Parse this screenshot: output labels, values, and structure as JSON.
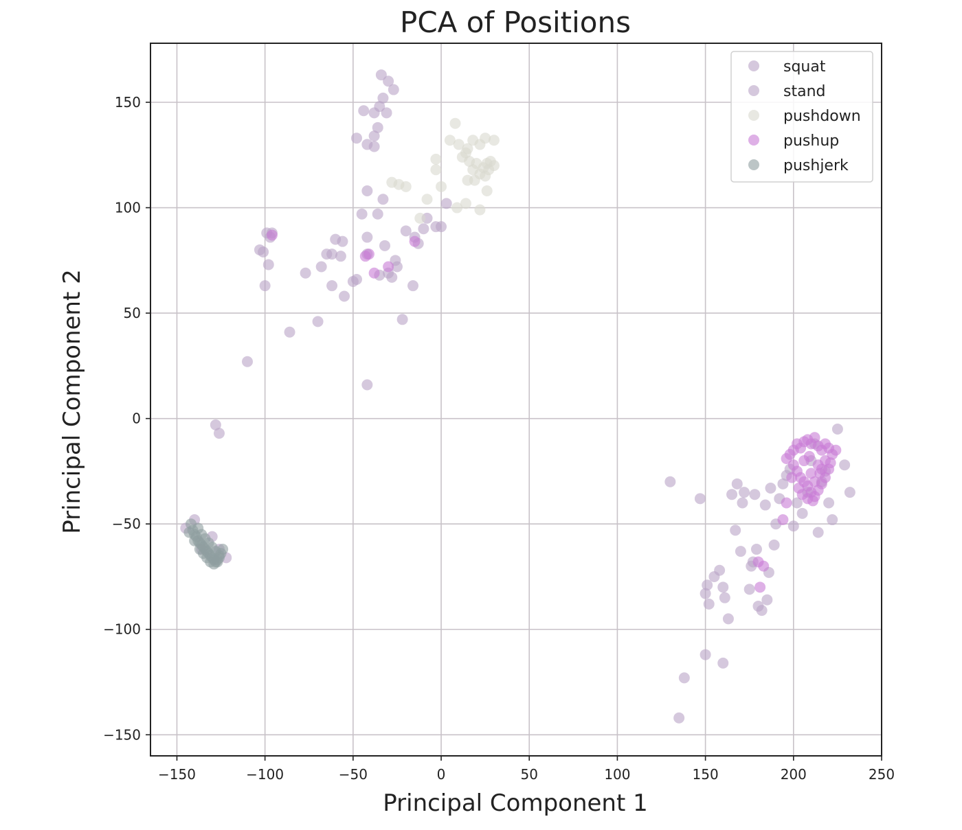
{
  "chart_data": {
    "type": "scatter",
    "title": "PCA of Positions",
    "xlabel": "Principal Component 1",
    "ylabel": "Principal Component 2",
    "xlim": [
      -165,
      250
    ],
    "ylim": [
      -160,
      178
    ],
    "xticks": [
      -150,
      -100,
      -50,
      0,
      50,
      100,
      150,
      200,
      250
    ],
    "yticks": [
      -150,
      -100,
      -50,
      0,
      50,
      100,
      150
    ],
    "xtick_labels": [
      "−150",
      "−100",
      "−50",
      "0",
      "50",
      "100",
      "150",
      "200",
      "250"
    ],
    "ytick_labels": [
      "−150",
      "−100",
      "−50",
      "0",
      "50",
      "100",
      "150"
    ],
    "grid": true,
    "legend_position": "top-right",
    "series": [
      {
        "name": "squat",
        "color": "#b9a3c7",
        "points": [
          [
            -140,
            -48
          ],
          [
            -145,
            -52
          ],
          [
            -130,
            -56
          ],
          [
            -126,
            -62
          ],
          [
            -122,
            -66
          ],
          [
            -136,
            -62
          ],
          [
            -128,
            -3
          ],
          [
            -126,
            -7
          ],
          [
            130,
            -30
          ],
          [
            147,
            -38
          ],
          [
            150,
            -83
          ],
          [
            151,
            -79
          ],
          [
            152,
            -88
          ],
          [
            155,
            -75
          ],
          [
            158,
            -72
          ],
          [
            160,
            -80
          ],
          [
            161,
            -85
          ],
          [
            163,
            -95
          ],
          [
            165,
            -36
          ],
          [
            167,
            -53
          ],
          [
            168,
            -31
          ],
          [
            170,
            -63
          ],
          [
            171,
            -40
          ],
          [
            172,
            -35
          ],
          [
            175,
            -81
          ],
          [
            176,
            -70
          ],
          [
            177,
            -68
          ],
          [
            178,
            -36
          ],
          [
            179,
            -62
          ],
          [
            180,
            -89
          ],
          [
            182,
            -91
          ],
          [
            184,
            -41
          ],
          [
            185,
            -86
          ],
          [
            186,
            -73
          ],
          [
            187,
            -33
          ],
          [
            189,
            -60
          ],
          [
            190,
            -50
          ],
          [
            192,
            -38
          ],
          [
            194,
            -31
          ],
          [
            196,
            -27
          ],
          [
            198,
            -24
          ],
          [
            200,
            -51
          ],
          [
            202,
            -40
          ],
          [
            205,
            -45
          ],
          [
            208,
            -35
          ],
          [
            210,
            -20
          ],
          [
            212,
            -12
          ],
          [
            214,
            -54
          ],
          [
            216,
            -30
          ],
          [
            218,
            -25
          ],
          [
            220,
            -40
          ],
          [
            222,
            -48
          ],
          [
            225,
            -5
          ],
          [
            229,
            -22
          ],
          [
            232,
            -35
          ],
          [
            150,
            -112
          ],
          [
            160,
            -116
          ],
          [
            138,
            -123
          ],
          [
            135,
            -142
          ]
        ]
      },
      {
        "name": "stand",
        "color": "#b9a3c7",
        "points": [
          [
            -34,
            163
          ],
          [
            -30,
            160
          ],
          [
            -27,
            156
          ],
          [
            -33,
            152
          ],
          [
            -35,
            148
          ],
          [
            -31,
            145
          ],
          [
            -38,
            145
          ],
          [
            -44,
            146
          ],
          [
            -36,
            138
          ],
          [
            -38,
            134
          ],
          [
            -38,
            129
          ],
          [
            -48,
            133
          ],
          [
            -42,
            130
          ],
          [
            -42,
            108
          ],
          [
            -33,
            104
          ],
          [
            -45,
            97
          ],
          [
            -36,
            97
          ],
          [
            -60,
            85
          ],
          [
            -56,
            84
          ],
          [
            -42,
            86
          ],
          [
            -32,
            82
          ],
          [
            -62,
            78
          ],
          [
            -57,
            77
          ],
          [
            -65,
            78
          ],
          [
            -42,
            78
          ],
          [
            -26,
            75
          ],
          [
            -25,
            72
          ],
          [
            -30,
            69
          ],
          [
            -35,
            68
          ],
          [
            -28,
            67
          ],
          [
            -48,
            66
          ],
          [
            -50,
            65
          ],
          [
            -62,
            63
          ],
          [
            -55,
            58
          ],
          [
            -16,
            63
          ],
          [
            -68,
            72
          ],
          [
            -77,
            69
          ],
          [
            -22,
            47
          ],
          [
            -70,
            46
          ],
          [
            -86,
            41
          ],
          [
            -110,
            27
          ],
          [
            -42,
            16
          ],
          [
            -20,
            89
          ],
          [
            -15,
            86
          ],
          [
            -13,
            83
          ],
          [
            -10,
            90
          ],
          [
            -8,
            95
          ],
          [
            -3,
            91
          ],
          [
            0,
            91
          ],
          [
            3,
            102
          ],
          [
            -99,
            88
          ],
          [
            -97,
            86
          ],
          [
            -96,
            88
          ],
          [
            -98,
            73
          ],
          [
            -101,
            79
          ],
          [
            -103,
            80
          ],
          [
            -100,
            63
          ]
        ]
      },
      {
        "name": "pushdown",
        "color": "#d9d9cf",
        "points": [
          [
            8,
            140
          ],
          [
            5,
            132
          ],
          [
            10,
            130
          ],
          [
            15,
            128
          ],
          [
            18,
            132
          ],
          [
            22,
            130
          ],
          [
            25,
            133
          ],
          [
            30,
            132
          ],
          [
            12,
            124
          ],
          [
            14,
            126
          ],
          [
            16,
            122
          ],
          [
            18,
            118
          ],
          [
            20,
            121
          ],
          [
            22,
            116
          ],
          [
            24,
            119
          ],
          [
            26,
            121
          ],
          [
            28,
            122
          ],
          [
            30,
            120
          ],
          [
            15,
            113
          ],
          [
            19,
            113
          ],
          [
            27,
            118
          ],
          [
            25,
            115
          ],
          [
            26,
            108
          ],
          [
            14,
            102
          ],
          [
            9,
            100
          ],
          [
            0,
            110
          ],
          [
            -3,
            123
          ],
          [
            -3,
            118
          ],
          [
            -8,
            104
          ],
          [
            -12,
            95
          ],
          [
            22,
            99
          ],
          [
            -24,
            111
          ],
          [
            -20,
            110
          ],
          [
            -28,
            112
          ]
        ]
      },
      {
        "name": "pushup",
        "color": "#c87bd6",
        "points": [
          [
            198,
            -17
          ],
          [
            200,
            -15
          ],
          [
            202,
            -12
          ],
          [
            204,
            -14
          ],
          [
            206,
            -11
          ],
          [
            208,
            -10
          ],
          [
            210,
            -12
          ],
          [
            212,
            -9
          ],
          [
            214,
            -13
          ],
          [
            216,
            -15
          ],
          [
            218,
            -12
          ],
          [
            220,
            -14
          ],
          [
            222,
            -17
          ],
          [
            224,
            -15
          ],
          [
            200,
            -22
          ],
          [
            202,
            -25
          ],
          [
            204,
            -28
          ],
          [
            206,
            -30
          ],
          [
            208,
            -32
          ],
          [
            210,
            -35
          ],
          [
            212,
            -37
          ],
          [
            214,
            -34
          ],
          [
            216,
            -31
          ],
          [
            218,
            -28
          ],
          [
            206,
            -20
          ],
          [
            210,
            -26
          ],
          [
            214,
            -22
          ],
          [
            218,
            -20
          ],
          [
            220,
            -24
          ],
          [
            203,
            -33
          ],
          [
            208,
            -38
          ],
          [
            212,
            -30
          ],
          [
            215,
            -26
          ],
          [
            196,
            -19
          ],
          [
            199,
            -28
          ],
          [
            205,
            -36
          ],
          [
            211,
            -39
          ],
          [
            216,
            -24
          ],
          [
            221,
            -21
          ],
          [
            209,
            -18
          ],
          [
            180,
            -68
          ],
          [
            183,
            -70
          ],
          [
            181,
            -80
          ],
          [
            194,
            -48
          ],
          [
            196,
            -40
          ],
          [
            -41,
            78
          ],
          [
            -43,
            77
          ],
          [
            -15,
            84
          ],
          [
            -30,
            72
          ],
          [
            -38,
            69
          ],
          [
            -96,
            87
          ]
        ]
      },
      {
        "name": "pushjerk",
        "color": "#909fa0",
        "points": [
          [
            -142,
            -50
          ],
          [
            -141,
            -53
          ],
          [
            -140,
            -55
          ],
          [
            -139,
            -56
          ],
          [
            -138,
            -58
          ],
          [
            -137,
            -59
          ],
          [
            -136,
            -60
          ],
          [
            -135,
            -61
          ],
          [
            -134,
            -62
          ],
          [
            -133,
            -63
          ],
          [
            -132,
            -64
          ],
          [
            -131,
            -65
          ],
          [
            -130,
            -66
          ],
          [
            -129,
            -67
          ],
          [
            -128,
            -68
          ],
          [
            -127,
            -67
          ],
          [
            -126,
            -66
          ],
          [
            -125,
            -64
          ],
          [
            -124,
            -62
          ],
          [
            -138,
            -52
          ],
          [
            -136,
            -55
          ],
          [
            -134,
            -57
          ],
          [
            -132,
            -59
          ],
          [
            -130,
            -61
          ],
          [
            -128,
            -63
          ],
          [
            -126,
            -65
          ],
          [
            -135,
            -64
          ],
          [
            -133,
            -66
          ],
          [
            -131,
            -68
          ],
          [
            -129,
            -69
          ],
          [
            -127,
            -68
          ],
          [
            -140,
            -58
          ],
          [
            -137,
            -62
          ],
          [
            -143,
            -54
          ]
        ]
      }
    ]
  }
}
